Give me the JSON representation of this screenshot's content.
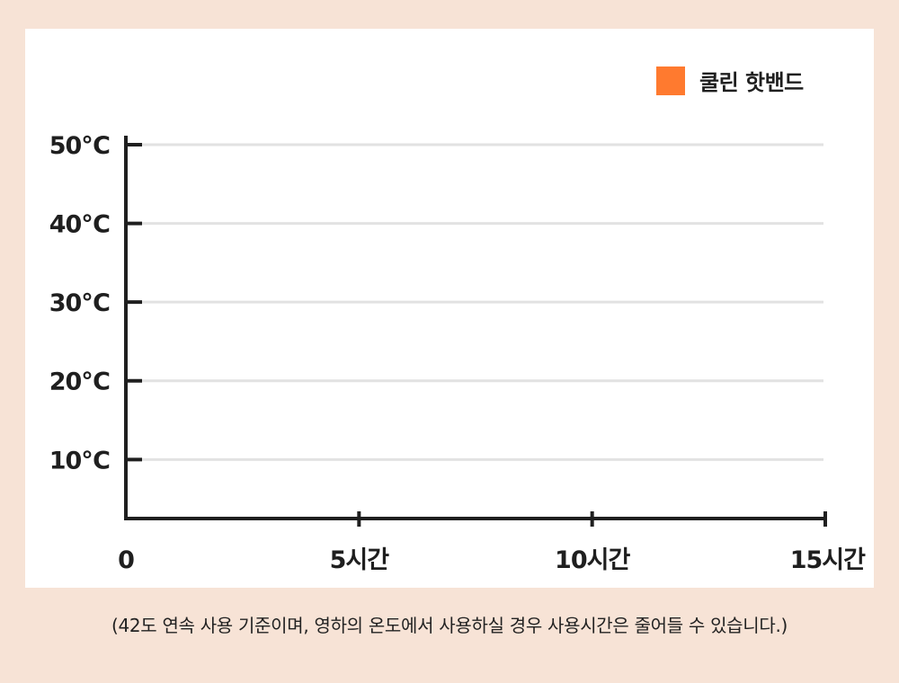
{
  "chart_data": {
    "type": "line",
    "xlabel": "",
    "ylabel": "",
    "x_ticks": [
      {
        "value": 0,
        "label": "0"
      },
      {
        "value": 5,
        "label": "5시간"
      },
      {
        "value": 10,
        "label": "10시간"
      },
      {
        "value": 15,
        "label": "15시간"
      }
    ],
    "y_ticks": [
      {
        "value": 10,
        "label": "10℃"
      },
      {
        "value": 20,
        "label": "20℃"
      },
      {
        "value": 30,
        "label": "30℃"
      },
      {
        "value": 40,
        "label": "40℃"
      },
      {
        "value": 50,
        "label": "50℃"
      }
    ],
    "xlim": [
      0,
      15
    ],
    "ylim": [
      2.5,
      50
    ],
    "grid": true,
    "legend_position": "top-right",
    "series": [
      {
        "name": "쿨린 핫밴드",
        "color": "#ff7a2f",
        "values": []
      }
    ]
  },
  "legend": {
    "label": "쿨린 핫밴드",
    "color": "#ff7a2f"
  },
  "footnote": "(42도 연속 사용 기준이며, 영하의 온도에서 사용하실 경우 사용시간은 줄어들 수 있습니다.)",
  "colors": {
    "background": "#f7e3d6",
    "panel": "#ffffff",
    "axis": "#1f1f1f",
    "grid": "#e2e2e2",
    "accent": "#ff7a2f"
  }
}
